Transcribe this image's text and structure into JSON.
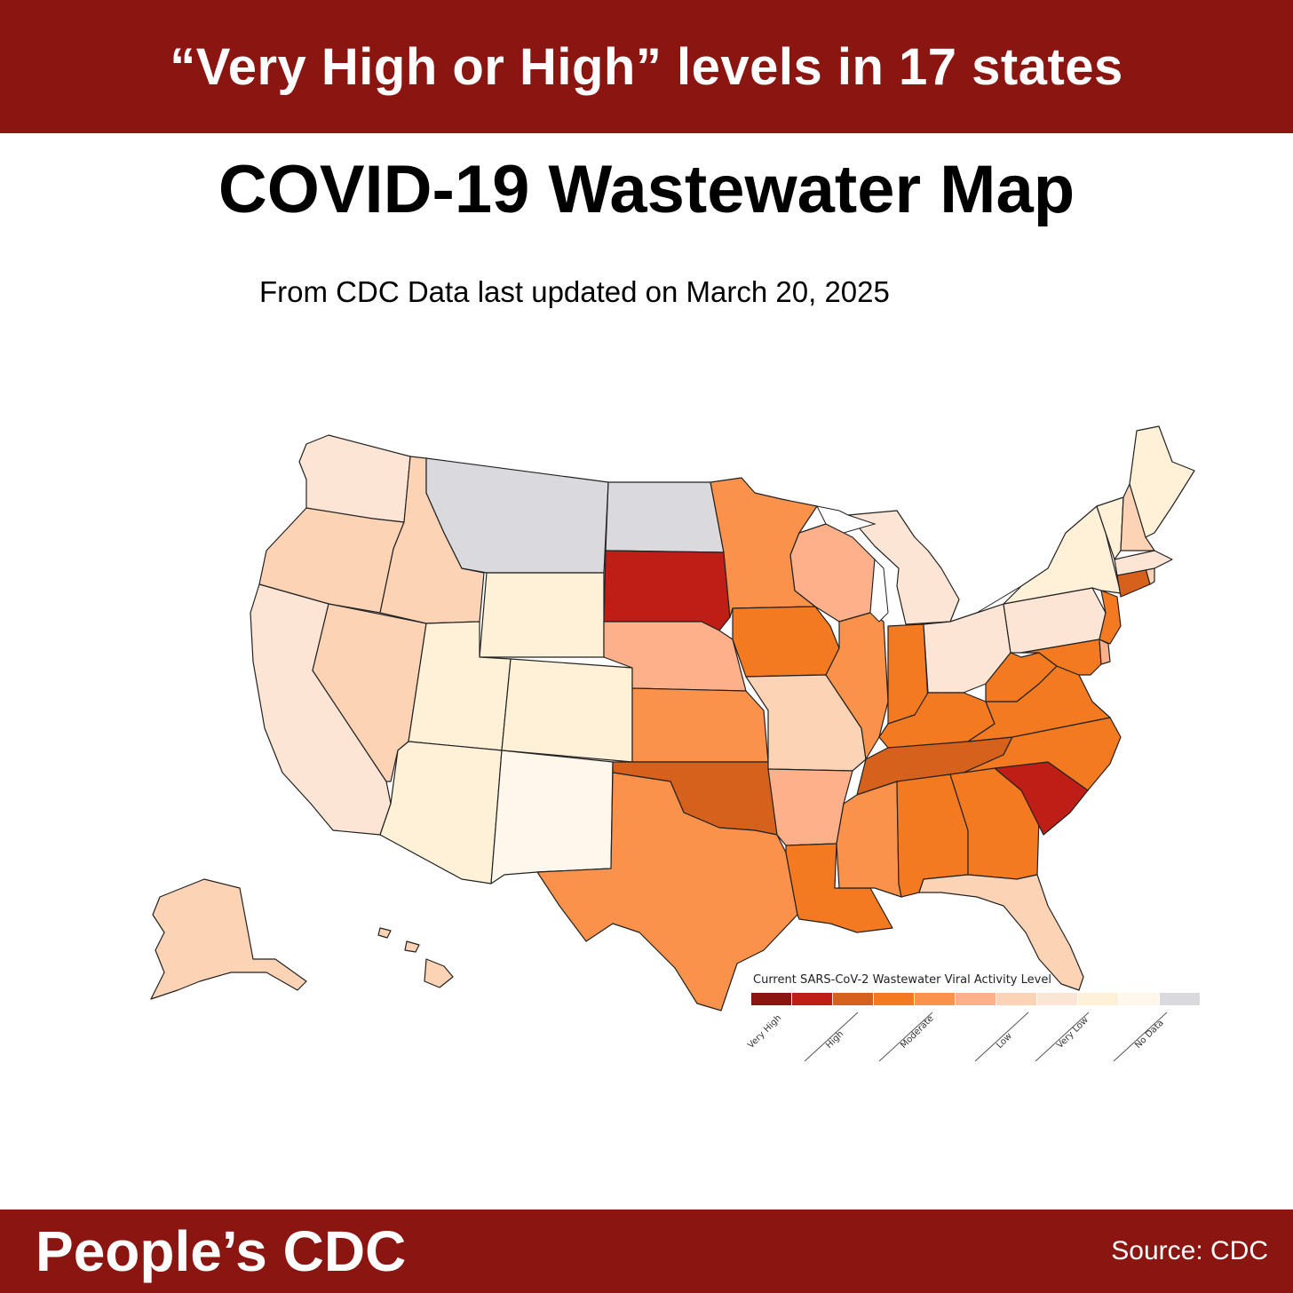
{
  "banner": {
    "text": "“Very High or High” levels in 17 states"
  },
  "title": "COVID-19 Wastewater Map",
  "subtitle": "From CDC Data last updated on March 20, 2025",
  "legend": {
    "title": "Current SARS-CoV-2 Wastewater Viral Activity Level",
    "labels": [
      "Very High",
      "High",
      "Moderate",
      "Low",
      "Very Low",
      "No Data"
    ],
    "swatches": [
      "#8b1511",
      "#be1e16",
      "#d6611c",
      "#f47a22",
      "#fa924b",
      "#fdb08a",
      "#fdd3b6",
      "#fde5d6",
      "#fff0d8",
      "#fff6ec",
      "#dad9de"
    ]
  },
  "colors": {
    "very_high": "#be1e16",
    "high": "#d6611c",
    "moderate_high": "#f47a22",
    "moderate": "#fa924b",
    "moderate_low": "#fdb08a",
    "low": "#fdd3b6",
    "low_light": "#fde5d6",
    "very_low": "#fff0d8",
    "very_low_light": "#fff6ec",
    "no_data": "#dad9de"
  },
  "footer": {
    "brand": "People’s CDC",
    "source": "Source: CDC"
  }
}
